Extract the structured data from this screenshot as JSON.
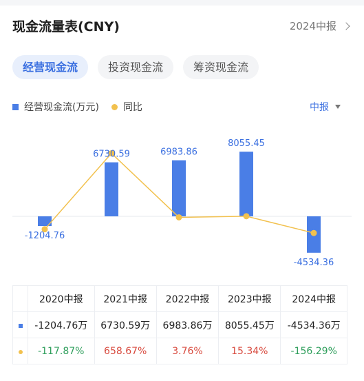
{
  "header": {
    "title": "现金流量表(CNY)",
    "period_label": "2024中报"
  },
  "tabs": [
    {
      "label": "经营现金流",
      "active": true
    },
    {
      "label": "投资现金流",
      "active": false
    },
    {
      "label": "筹资现金流",
      "active": false
    }
  ],
  "legend": {
    "bar_label": "经营现金流(万元)",
    "line_label": "同比"
  },
  "selector": {
    "label": "中报"
  },
  "colors": {
    "bar": "#4a7ee6",
    "line": "#f2c14e",
    "accent": "#3a6fe0",
    "positive": "#d84a3e",
    "negative": "#2e9e5b"
  },
  "chart_data": {
    "type": "bar",
    "categories": [
      "2020中报",
      "2021中报",
      "2022中报",
      "2023中报",
      "2024中报"
    ],
    "series": [
      {
        "name": "经营现金流(万元)",
        "type": "bar",
        "values": [
          -1204.76,
          6730.59,
          6983.86,
          8055.45,
          -4534.36
        ],
        "labels": [
          "-1204.76",
          "6730.59",
          "6983.86",
          "8055.45",
          "-4534.36"
        ]
      },
      {
        "name": "同比",
        "type": "line",
        "values": [
          -117.87,
          658.67,
          3.76,
          15.34,
          -156.29
        ]
      }
    ]
  },
  "table": {
    "headers": [
      "2020中报",
      "2021中报",
      "2022中报",
      "2023中报",
      "2024中报"
    ],
    "bar_row": [
      "-1204.76万",
      "6730.59万",
      "6983.86万",
      "8055.45万",
      "-4534.36万"
    ],
    "line_row": [
      "-117.87%",
      "658.67%",
      "3.76%",
      "15.34%",
      "-156.29%"
    ]
  }
}
